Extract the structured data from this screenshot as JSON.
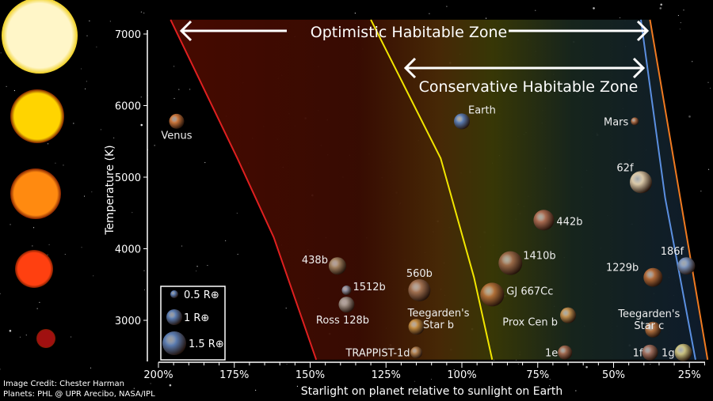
{
  "chart_data": {
    "type": "scatter",
    "xlabel": "Starlight on planet relative to sunlight on Earth",
    "ylabel": "Temperature (K)",
    "x_axis": {
      "reversed": true,
      "lim": [
        200,
        20
      ],
      "ticks": [
        200,
        175,
        150,
        125,
        100,
        75,
        50,
        25
      ],
      "tick_labels": [
        "200%",
        "175%",
        "150%",
        "125%",
        "100%",
        "75%",
        "50%",
        "25%"
      ]
    },
    "y_axis": {
      "lim": [
        2450,
        7200
      ],
      "ticks": [
        3000,
        4000,
        5000,
        6000,
        7000
      ],
      "tick_labels": [
        "3000",
        "4000",
        "5000",
        "6000",
        "7000"
      ]
    },
    "grid": false,
    "zones": {
      "optimistic_label": "Optimistic Habitable Zone",
      "conservative_label": "Conservative Habitable Zone"
    },
    "boundaries": [
      {
        "color": "#e02020",
        "points": [
          [
            196,
            7200
          ],
          [
            174,
            5265
          ],
          [
            162,
            4160
          ],
          [
            148,
            2450
          ]
        ]
      },
      {
        "color": "#f2e600",
        "points": [
          [
            130,
            7200
          ],
          [
            107,
            5265
          ],
          [
            96,
            3600
          ],
          [
            90,
            2450
          ]
        ]
      },
      {
        "color": "#5b8fe0",
        "points": [
          [
            41,
            7200
          ],
          [
            33,
            4710
          ],
          [
            23,
            2450
          ]
        ]
      },
      {
        "color": "#f07a20",
        "points": [
          [
            38,
            7200
          ],
          [
            19,
            2450
          ]
        ]
      }
    ],
    "planets": [
      {
        "name": "Venus",
        "flux": 194,
        "temp": 5780,
        "radius": 0.95,
        "color": "#c8743a"
      },
      {
        "name": "Earth",
        "flux": 100,
        "temp": 5780,
        "radius": 1.0,
        "color": "#5a7bb0"
      },
      {
        "name": "Mars",
        "flux": 43,
        "temp": 5780,
        "radius": 0.5,
        "color": "#b0704a"
      },
      {
        "name": "62f",
        "flux": 41,
        "temp": 4930,
        "radius": 1.4,
        "color": "#d9c8a8"
      },
      {
        "name": "442b",
        "flux": 73,
        "temp": 4400,
        "radius": 1.3,
        "color": "#a86a50"
      },
      {
        "name": "1410b",
        "flux": 84,
        "temp": 3800,
        "radius": 1.5,
        "color": "#9a6a48"
      },
      {
        "name": "186f",
        "flux": 26,
        "temp": 3760,
        "radius": 1.1,
        "color": "#7890b8"
      },
      {
        "name": "438b",
        "flux": 141,
        "temp": 3760,
        "radius": 1.1,
        "color": "#a08060"
      },
      {
        "name": "1229b",
        "flux": 37,
        "temp": 3600,
        "radius": 1.2,
        "color": "#b06a3a"
      },
      {
        "name": "1512b",
        "flux": 138,
        "temp": 3420,
        "radius": 0.6,
        "color": "#8a8a9a"
      },
      {
        "name": "560b",
        "flux": 114,
        "temp": 3420,
        "radius": 1.4,
        "color": "#a07050"
      },
      {
        "name": "GJ 667Cc",
        "flux": 90,
        "temp": 3360,
        "radius": 1.5,
        "color": "#b07038"
      },
      {
        "name": "Ross 128b",
        "flux": 138,
        "temp": 3220,
        "radius": 1.0,
        "color": "#9a8a80"
      },
      {
        "name": "Teegarden's Star b",
        "flux": 115,
        "temp": 2910,
        "radius": 1.0,
        "color": "#c08a40"
      },
      {
        "name": "Prox Cen b",
        "flux": 65,
        "temp": 3070,
        "radius": 1.0,
        "color": "#c09050"
      },
      {
        "name": "Teegarden's Star c",
        "flux": 37,
        "temp": 2870,
        "radius": 1.0,
        "color": "#b07040"
      },
      {
        "name": "TRAPPIST-1d",
        "flux": 115,
        "temp": 2550,
        "radius": 0.75,
        "color": "#b08050"
      },
      {
        "name": "1e",
        "flux": 66,
        "temp": 2550,
        "radius": 0.9,
        "color": "#a06a50"
      },
      {
        "name": "1f",
        "flux": 38,
        "temp": 2550,
        "radius": 1.0,
        "color": "#a07060"
      },
      {
        "name": "1g",
        "flux": 27,
        "temp": 2550,
        "radius": 1.1,
        "color": "#c8c080"
      }
    ],
    "legend": {
      "placement": "bottom-left",
      "items": [
        {
          "label": "0.5 R⊕",
          "radius": 0.5
        },
        {
          "label": "1 R⊕",
          "radius": 1.0
        },
        {
          "label": "1.5 R⊕",
          "radius": 1.5
        }
      ]
    },
    "stars": [
      {
        "color": "#fff6c8"
      },
      {
        "color": "#ffd400"
      },
      {
        "color": "#ff8a10"
      },
      {
        "color": "#ff4010"
      },
      {
        "color": "#a01010"
      }
    ]
  },
  "credits": {
    "image": "Image Credit: Chester Harman",
    "planets": "Planets:  PHL @ UPR Arecibo, NASA/IPL"
  }
}
